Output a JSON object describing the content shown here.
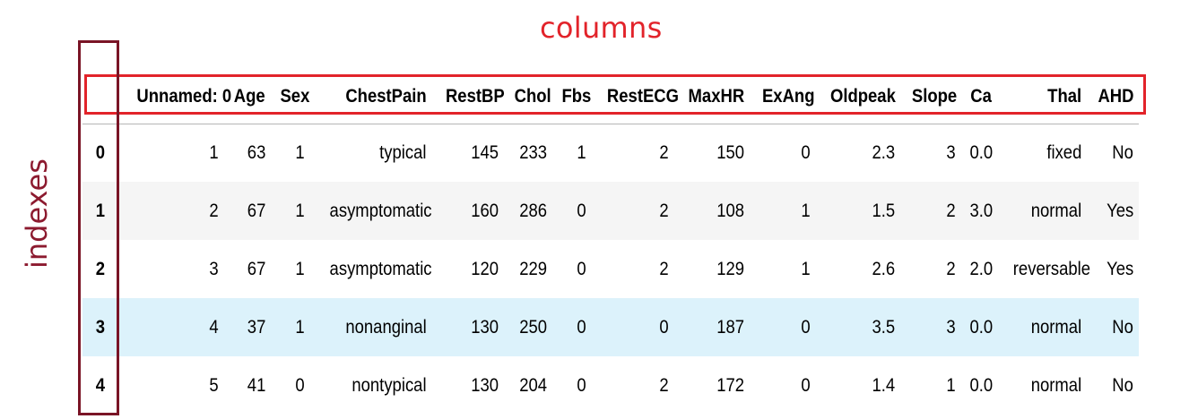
{
  "annotations": {
    "columns_label": "columns",
    "indexes_label": "indexes",
    "columns_color": "#e2232a",
    "indexes_color": "#7a1426"
  },
  "table": {
    "corner": "",
    "columns": [
      "Unnamed: 0",
      "Age",
      "Sex",
      "ChestPain",
      "RestBP",
      "Chol",
      "Fbs",
      "RestECG",
      "MaxHR",
      "ExAng",
      "Oldpeak",
      "Slope",
      "Ca",
      "Thal",
      "AHD"
    ],
    "rows": [
      {
        "index": "0",
        "cells": [
          "1",
          "63",
          "1",
          "typical",
          "145",
          "233",
          "1",
          "2",
          "150",
          "0",
          "2.3",
          "3",
          "0.0",
          "fixed",
          "No"
        ]
      },
      {
        "index": "1",
        "cells": [
          "2",
          "67",
          "1",
          "asymptomatic",
          "160",
          "286",
          "0",
          "2",
          "108",
          "1",
          "1.5",
          "2",
          "3.0",
          "normal",
          "Yes"
        ]
      },
      {
        "index": "2",
        "cells": [
          "3",
          "67",
          "1",
          "asymptomatic",
          "120",
          "229",
          "0",
          "2",
          "129",
          "1",
          "2.6",
          "2",
          "2.0",
          "reversable",
          "Yes"
        ]
      },
      {
        "index": "3",
        "cells": [
          "4",
          "37",
          "1",
          "nonanginal",
          "130",
          "250",
          "0",
          "0",
          "187",
          "0",
          "3.5",
          "3",
          "0.0",
          "normal",
          "No"
        ]
      },
      {
        "index": "4",
        "cells": [
          "5",
          "41",
          "0",
          "nontypical",
          "130",
          "204",
          "0",
          "2",
          "172",
          "0",
          "1.4",
          "1",
          "0.0",
          "normal",
          "No"
        ]
      }
    ],
    "row_stripe_color": "#f5f5f5",
    "row_hover_color": "#dcf2fb",
    "hovered_row": 3
  }
}
